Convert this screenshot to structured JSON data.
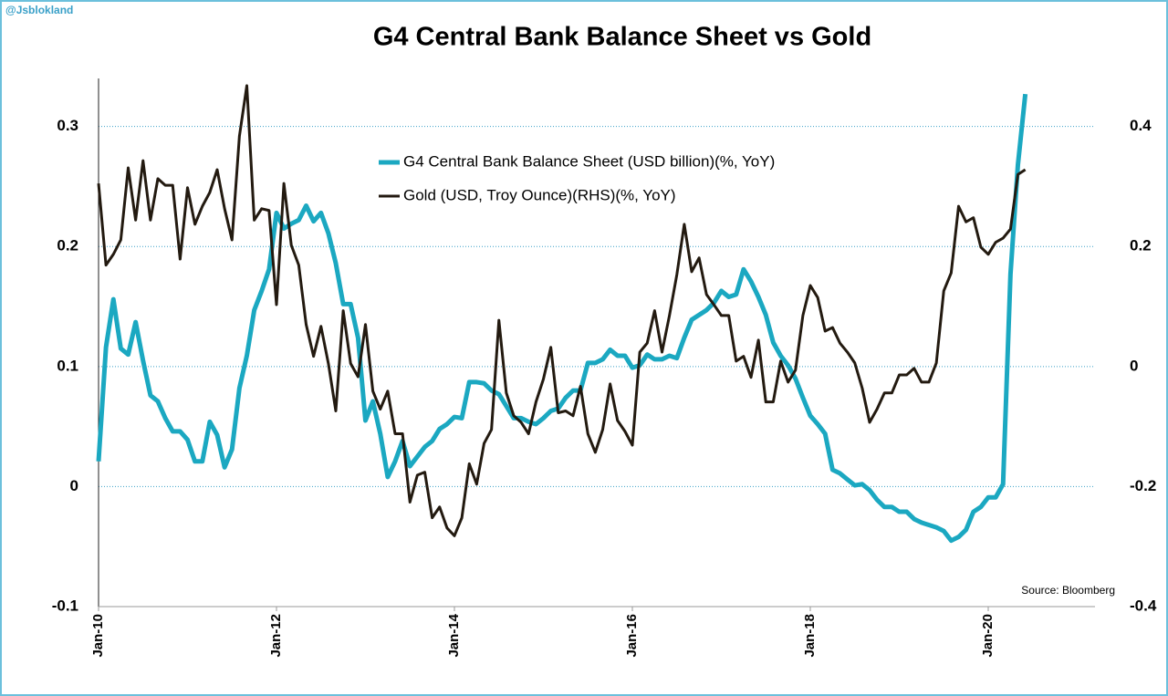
{
  "chart_data": {
    "type": "line",
    "title": "G4 Central Bank Balance Sheet vs Gold",
    "watermark": "@Jsblokland",
    "source": "Source: Bloomberg",
    "categories": [
      "Jan-10",
      null,
      null,
      null,
      null,
      null,
      null,
      null,
      null,
      null,
      null,
      null,
      null,
      null,
      null,
      null,
      null,
      null,
      null,
      null,
      null,
      null,
      null,
      null,
      "Jan-12",
      null,
      null,
      null,
      null,
      null,
      null,
      null,
      null,
      null,
      null,
      null,
      null,
      null,
      null,
      null,
      null,
      null,
      null,
      null,
      null,
      null,
      null,
      null,
      "Jan-14",
      null,
      null,
      null,
      null,
      null,
      null,
      null,
      null,
      null,
      null,
      null,
      null,
      null,
      null,
      null,
      null,
      null,
      null,
      null,
      null,
      null,
      null,
      null,
      "Jan-16",
      null,
      null,
      null,
      null,
      null,
      null,
      null,
      null,
      null,
      null,
      null,
      null,
      null,
      null,
      null,
      null,
      null,
      null,
      null,
      null,
      null,
      null,
      null,
      "Jan-18",
      null,
      null,
      null,
      null,
      null,
      null,
      null,
      null,
      null,
      null,
      null,
      null,
      null,
      null,
      null,
      null,
      null,
      null,
      null,
      null,
      null,
      null,
      null,
      "Jan-20",
      null,
      null,
      null,
      null,
      null,
      null,
      null,
      null,
      null,
      null,
      null,
      null,
      null,
      null
    ],
    "series": [
      {
        "name": "G4 Central Bank Balance Sheet (USD billion)(%, YoY)",
        "color": "#1ba8c1",
        "values": [
          0.021,
          0.116,
          0.156,
          0.115,
          0.11,
          0.137,
          0.105,
          0.076,
          0.071,
          0.057,
          0.046,
          0.046,
          0.039,
          0.021,
          0.021,
          0.054,
          0.043,
          0.016,
          0.031,
          0.082,
          0.109,
          0.147,
          0.163,
          0.181,
          0.228,
          0.215,
          0.219,
          0.222,
          0.234,
          0.221,
          0.228,
          0.211,
          0.186,
          0.152,
          0.152,
          0.124,
          0.055,
          0.071,
          0.044,
          0.008,
          0.021,
          0.038,
          0.017,
          0.025,
          0.033,
          0.038,
          0.048,
          0.052,
          0.058,
          0.057,
          0.087,
          0.087,
          0.086,
          0.08,
          0.077,
          0.067,
          0.057,
          0.057,
          0.054,
          0.052,
          0.057,
          0.063,
          0.065,
          0.074,
          0.08,
          0.08,
          0.103,
          0.103,
          0.106,
          0.114,
          0.109,
          0.109,
          0.099,
          0.101,
          0.11,
          0.106,
          0.106,
          0.109,
          0.107,
          0.124,
          0.139,
          0.143,
          0.147,
          0.153,
          0.163,
          0.158,
          0.16,
          0.181,
          0.171,
          0.158,
          0.143,
          0.12,
          0.109,
          0.101,
          0.09,
          0.074,
          0.059,
          0.052,
          0.044,
          0.014,
          0.011,
          0.006,
          0.001,
          0.002,
          -0.003,
          -0.011,
          -0.017,
          -0.017,
          -0.021,
          -0.021,
          -0.027,
          -0.03,
          -0.032,
          -0.034,
          -0.037,
          -0.045,
          -0.042,
          -0.036,
          -0.021,
          -0.017,
          -0.009,
          -0.009,
          0.002,
          0.177,
          0.268,
          0.327,
          null,
          null,
          null,
          null,
          null,
          null,
          null,
          null,
          null
        ]
      },
      {
        "name": "Gold (USD, Troy Ounce)(RHS)(%, YoY)",
        "color": "#231a10",
        "axis": "y2",
        "values": [
          0.305,
          0.169,
          0.187,
          0.211,
          0.331,
          0.244,
          0.343,
          0.244,
          0.313,
          0.302,
          0.302,
          0.179,
          0.298,
          0.237,
          0.267,
          0.29,
          0.328,
          0.263,
          0.211,
          0.384,
          0.468,
          0.244,
          0.263,
          0.26,
          0.103,
          0.305,
          0.202,
          0.169,
          0.07,
          0.017,
          0.067,
          0.005,
          -0.074,
          0.093,
          0.005,
          -0.017,
          0.07,
          -0.041,
          -0.071,
          -0.041,
          -0.112,
          -0.112,
          -0.226,
          -0.181,
          -0.176,
          -0.252,
          -0.234,
          -0.269,
          -0.282,
          -0.252,
          -0.162,
          -0.196,
          -0.128,
          -0.105,
          0.077,
          -0.044,
          -0.082,
          -0.093,
          -0.112,
          -0.059,
          -0.021,
          0.032,
          -0.077,
          -0.074,
          -0.082,
          -0.033,
          -0.112,
          -0.143,
          -0.105,
          -0.029,
          -0.09,
          -0.108,
          -0.131,
          0.024,
          0.039,
          0.093,
          0.024,
          0.085,
          0.153,
          0.237,
          0.158,
          0.181,
          0.12,
          0.103,
          0.085,
          0.085,
          0.009,
          0.017,
          -0.018,
          0.044,
          -0.059,
          -0.059,
          0.009,
          -0.026,
          -0.006,
          0.085,
          0.135,
          0.115,
          0.059,
          0.065,
          0.039,
          0.024,
          0.006,
          -0.036,
          -0.093,
          -0.071,
          -0.044,
          -0.044,
          -0.014,
          -0.014,
          -0.003,
          -0.026,
          -0.026,
          0.006,
          0.126,
          0.156,
          0.267,
          0.241,
          0.248,
          0.199,
          0.187,
          0.207,
          0.214,
          0.229,
          0.32,
          0.328,
          null,
          null,
          null,
          null,
          null,
          null,
          null,
          null,
          null
        ]
      }
    ],
    "ylim": [
      -0.1,
      0.34
    ],
    "yticks": [
      -0.1,
      0,
      0.1,
      0.2,
      0.3
    ],
    "y2lim": [
      -0.4,
      0.48
    ],
    "y2ticks": [
      -0.4,
      -0.2,
      0,
      0.2,
      0.4
    ],
    "grid": true
  }
}
